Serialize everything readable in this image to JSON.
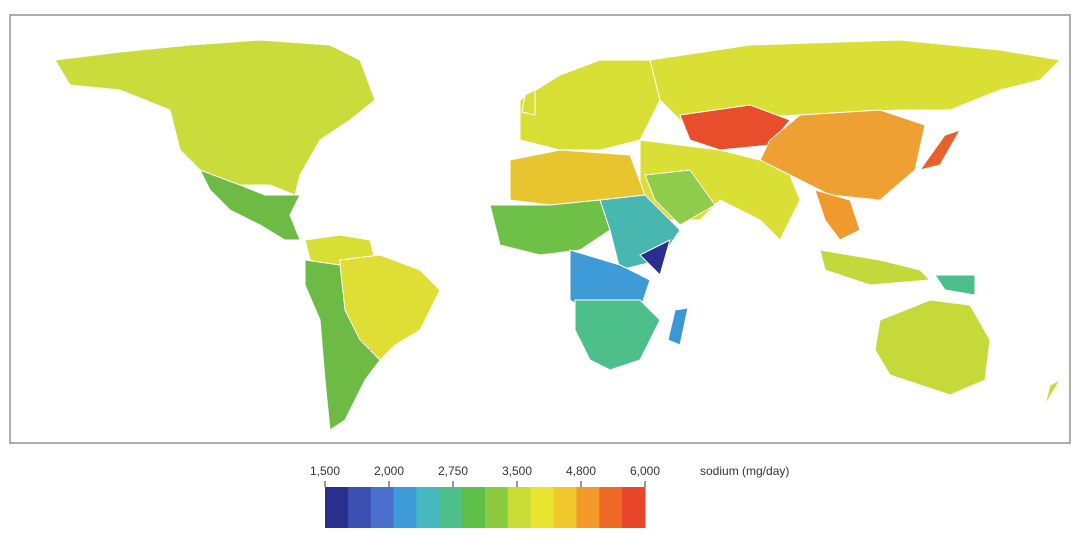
{
  "legend": {
    "title": "sodium (mg/day)",
    "ticks": [
      {
        "value": 1500,
        "label": "1,500"
      },
      {
        "value": 2000,
        "label": "2,000"
      },
      {
        "value": 2750,
        "label": "2,750"
      },
      {
        "value": 3500,
        "label": "3,500"
      },
      {
        "value": 4800,
        "label": "4,800"
      },
      {
        "value": 6000,
        "label": "6,000"
      }
    ],
    "colors": [
      "#2a2e8c",
      "#3a4fb0",
      "#4a6fcc",
      "#3f9ad8",
      "#45b8c0",
      "#4dbf8a",
      "#5dbf4a",
      "#8ccb3f",
      "#c8dc36",
      "#e8e42f",
      "#f0c82c",
      "#f29a2a",
      "#ee6a26",
      "#e8452a"
    ]
  }
}
